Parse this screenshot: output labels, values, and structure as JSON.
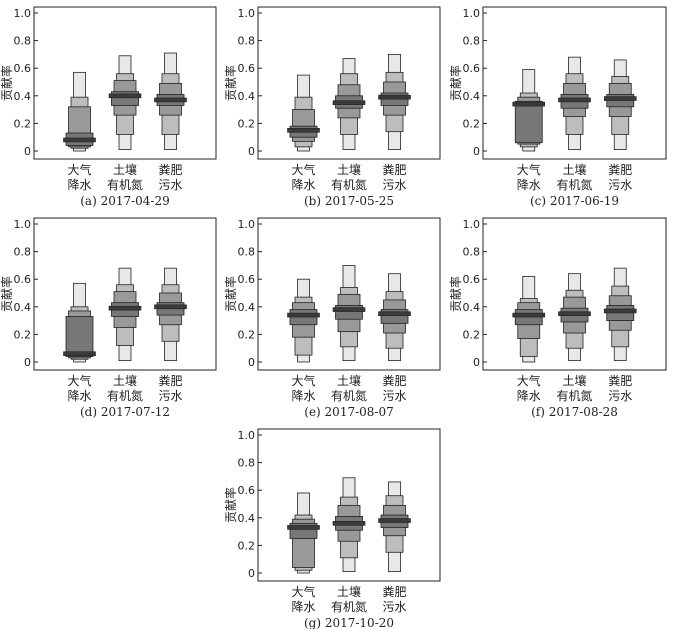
{
  "chart_data": [
    {
      "type": "boxplot",
      "caption": "(a) 2017-04-29",
      "ylabel": "贡献率",
      "ylim": [
        0,
        1.0
      ],
      "yticks": [
        "0",
        "0.2",
        "0.4",
        "0.6",
        "0.8",
        "1.0"
      ],
      "categories": [
        [
          "大气",
          "降水"
        ],
        [
          "土壤",
          "有机氮"
        ],
        [
          "粪肥",
          "污水"
        ]
      ],
      "series": [
        {
          "quantiles": [
            0.0,
            0.02,
            0.03,
            0.04,
            0.06,
            0.13,
            0.32,
            0.39,
            0.57
          ],
          "median": 0.08
        },
        {
          "quantiles": [
            0.01,
            0.12,
            0.26,
            0.33,
            0.37,
            0.43,
            0.51,
            0.56,
            0.69
          ],
          "median": 0.4
        },
        {
          "quantiles": [
            0.01,
            0.12,
            0.26,
            0.33,
            0.35,
            0.41,
            0.49,
            0.56,
            0.71
          ],
          "median": 0.37
        }
      ]
    },
    {
      "type": "boxplot",
      "caption": "(b) 2017-05-25",
      "ylabel": "贡献率",
      "ylim": [
        0,
        1.0
      ],
      "yticks": [
        "0",
        "0.2",
        "0.4",
        "0.6",
        "0.8",
        "1.0"
      ],
      "categories": [
        [
          "大气",
          "降水"
        ],
        [
          "土壤",
          "有机氮"
        ],
        [
          "粪肥",
          "污水"
        ]
      ],
      "series": [
        {
          "quantiles": [
            0.0,
            0.03,
            0.07,
            0.1,
            0.13,
            0.18,
            0.3,
            0.39,
            0.55
          ],
          "median": 0.15
        },
        {
          "quantiles": [
            0.01,
            0.12,
            0.24,
            0.31,
            0.34,
            0.4,
            0.48,
            0.56,
            0.67
          ],
          "median": 0.35
        },
        {
          "quantiles": [
            0.01,
            0.14,
            0.26,
            0.33,
            0.37,
            0.42,
            0.5,
            0.57,
            0.7
          ],
          "median": 0.39
        }
      ]
    },
    {
      "type": "boxplot",
      "caption": "(c) 2017-06-19",
      "ylabel": "贡献率",
      "ylim": [
        0,
        1.0
      ],
      "yticks": [
        "0",
        "0.2",
        "0.4",
        "0.6",
        "0.8",
        "1.0"
      ],
      "categories": [
        [
          "大气",
          "降水"
        ],
        [
          "土壤",
          "有机氮"
        ],
        [
          "粪肥",
          "污水"
        ]
      ],
      "series": [
        {
          "quantiles": [
            0.0,
            0.03,
            0.05,
            0.06,
            0.32,
            0.36,
            0.39,
            0.42,
            0.59
          ],
          "median": 0.34
        },
        {
          "quantiles": [
            0.01,
            0.12,
            0.25,
            0.31,
            0.35,
            0.41,
            0.49,
            0.56,
            0.68
          ],
          "median": 0.37
        },
        {
          "quantiles": [
            0.01,
            0.12,
            0.25,
            0.32,
            0.35,
            0.41,
            0.49,
            0.54,
            0.66
          ],
          "median": 0.38
        }
      ]
    },
    {
      "type": "boxplot",
      "caption": "(d) 2017-07-12",
      "ylabel": "贡献率",
      "ylim": [
        0,
        1.0
      ],
      "yticks": [
        "0",
        "0.2",
        "0.4",
        "0.6",
        "0.8",
        "1.0"
      ],
      "categories": [
        [
          "大气",
          "降水"
        ],
        [
          "土壤",
          "有机氮"
        ],
        [
          "粪肥",
          "污水"
        ]
      ],
      "series": [
        {
          "quantiles": [
            0.0,
            0.02,
            0.03,
            0.04,
            0.08,
            0.33,
            0.37,
            0.4,
            0.57
          ],
          "median": 0.06
        },
        {
          "quantiles": [
            0.01,
            0.12,
            0.25,
            0.33,
            0.37,
            0.43,
            0.51,
            0.56,
            0.68
          ],
          "median": 0.39
        },
        {
          "quantiles": [
            0.01,
            0.15,
            0.27,
            0.34,
            0.37,
            0.43,
            0.5,
            0.56,
            0.68
          ],
          "median": 0.4
        }
      ]
    },
    {
      "type": "boxplot",
      "caption": "(e) 2017-08-07",
      "ylabel": "贡献率",
      "ylim": [
        0,
        1.0
      ],
      "yticks": [
        "0",
        "0.2",
        "0.4",
        "0.6",
        "0.8",
        "1.0"
      ],
      "categories": [
        [
          "大气",
          "降水"
        ],
        [
          "土壤",
          "有机氮"
        ],
        [
          "粪肥",
          "污水"
        ]
      ],
      "series": [
        {
          "quantiles": [
            0.0,
            0.05,
            0.18,
            0.27,
            0.3,
            0.38,
            0.43,
            0.47,
            0.6
          ],
          "median": 0.34
        },
        {
          "quantiles": [
            0.01,
            0.11,
            0.22,
            0.31,
            0.34,
            0.41,
            0.49,
            0.54,
            0.7
          ],
          "median": 0.38
        },
        {
          "quantiles": [
            0.01,
            0.1,
            0.21,
            0.28,
            0.32,
            0.38,
            0.45,
            0.51,
            0.64
          ],
          "median": 0.35
        }
      ]
    },
    {
      "type": "boxplot",
      "caption": "(f) 2017-08-28",
      "ylabel": "贡献率",
      "ylim": [
        0,
        1.0
      ],
      "yticks": [
        "0",
        "0.2",
        "0.4",
        "0.6",
        "0.8",
        "1.0"
      ],
      "categories": [
        [
          "大气",
          "降水"
        ],
        [
          "土壤",
          "有机氮"
        ],
        [
          "粪肥",
          "污水"
        ]
      ],
      "series": [
        {
          "quantiles": [
            0.0,
            0.04,
            0.17,
            0.27,
            0.3,
            0.38,
            0.43,
            0.46,
            0.62
          ],
          "median": 0.34
        },
        {
          "quantiles": [
            0.01,
            0.1,
            0.21,
            0.29,
            0.32,
            0.39,
            0.47,
            0.52,
            0.64
          ],
          "median": 0.35
        },
        {
          "quantiles": [
            0.01,
            0.11,
            0.23,
            0.3,
            0.34,
            0.41,
            0.48,
            0.55,
            0.68
          ],
          "median": 0.37
        }
      ]
    },
    {
      "type": "boxplot",
      "caption": "(g) 2017-10-20",
      "ylabel": "贡献率",
      "ylim": [
        0,
        1.0
      ],
      "yticks": [
        "0",
        "0.2",
        "0.4",
        "0.6",
        "0.8",
        "1.0"
      ],
      "categories": [
        [
          "大气",
          "降水"
        ],
        [
          "土壤",
          "有机氮"
        ],
        [
          "粪肥",
          "污水"
        ]
      ],
      "series": [
        {
          "quantiles": [
            0.0,
            0.02,
            0.04,
            0.25,
            0.3,
            0.36,
            0.39,
            0.42,
            0.58
          ],
          "median": 0.33
        },
        {
          "quantiles": [
            0.01,
            0.11,
            0.23,
            0.31,
            0.34,
            0.41,
            0.49,
            0.55,
            0.69
          ],
          "median": 0.36
        },
        {
          "quantiles": [
            0.01,
            0.15,
            0.27,
            0.33,
            0.36,
            0.42,
            0.49,
            0.56,
            0.66
          ],
          "median": 0.38
        }
      ]
    }
  ],
  "colors": {
    "outer": "#e8e8e8",
    "middle": "#bdbdbd",
    "inner": "#999999",
    "core": "#777777",
    "median": "#3a3a3a",
    "frame": "#222222"
  }
}
